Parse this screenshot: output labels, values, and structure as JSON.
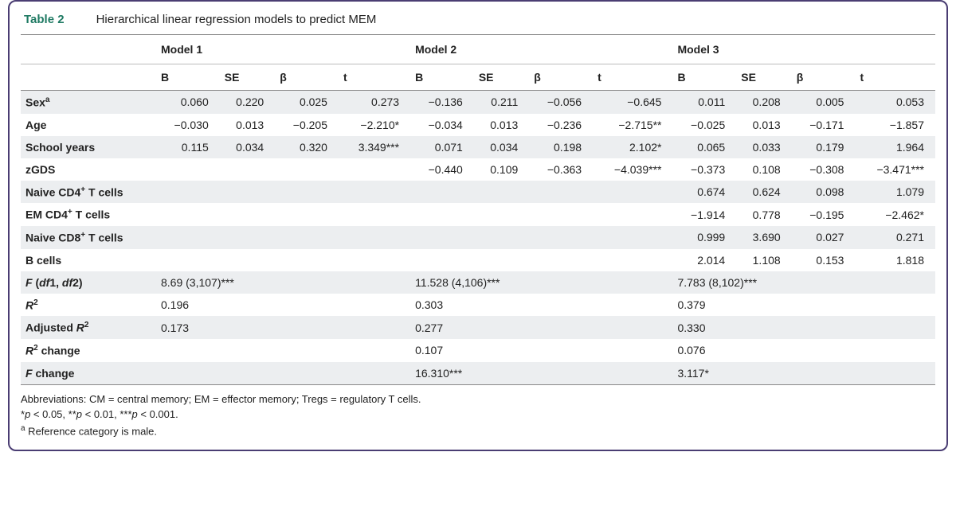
{
  "header": {
    "label": "Table 2",
    "caption": "Hierarchical linear regression models to predict MEM"
  },
  "models": [
    "Model 1",
    "Model 2",
    "Model 3"
  ],
  "subcols": [
    "B",
    "SE",
    "β",
    "t"
  ],
  "rows": [
    {
      "label_html": "Sex<sup>a</sup>",
      "m1": [
        "0.060",
        "0.220",
        "0.025",
        "0.273"
      ],
      "m2": [
        "−0.136",
        "0.211",
        "−0.056",
        "−0.645"
      ],
      "m3": [
        "0.011",
        "0.208",
        "0.005",
        "0.053"
      ]
    },
    {
      "label_html": "Age",
      "m1": [
        "−0.030",
        "0.013",
        "−0.205",
        "−2.210*"
      ],
      "m2": [
        "−0.034",
        "0.013",
        "−0.236",
        "−2.715**"
      ],
      "m3": [
        "−0.025",
        "0.013",
        "−0.171",
        "−1.857"
      ]
    },
    {
      "label_html": "School years",
      "m1": [
        "0.115",
        "0.034",
        "0.320",
        "3.349***"
      ],
      "m2": [
        "0.071",
        "0.034",
        "0.198",
        "2.102*"
      ],
      "m3": [
        "0.065",
        "0.033",
        "0.179",
        "1.964"
      ]
    },
    {
      "label_html": "zGDS",
      "m1": [
        "",
        "",
        "",
        ""
      ],
      "m2": [
        "−0.440",
        "0.109",
        "−0.363",
        "−4.039***"
      ],
      "m3": [
        "−0.373",
        "0.108",
        "−0.308",
        "−3.471***"
      ]
    },
    {
      "label_html": "Naive CD4<sup>+</sup> T cells",
      "m1": [
        "",
        "",
        "",
        ""
      ],
      "m2": [
        "",
        "",
        "",
        ""
      ],
      "m3": [
        "0.674",
        "0.624",
        "0.098",
        "1.079"
      ]
    },
    {
      "label_html": "EM CD4<sup>+</sup> T cells",
      "m1": [
        "",
        "",
        "",
        ""
      ],
      "m2": [
        "",
        "",
        "",
        ""
      ],
      "m3": [
        "−1.914",
        "0.778",
        "−0.195",
        "−2.462*"
      ]
    },
    {
      "label_html": "Naive CD8<sup>+</sup> T cells",
      "m1": [
        "",
        "",
        "",
        ""
      ],
      "m2": [
        "",
        "",
        "",
        ""
      ],
      "m3": [
        "0.999",
        "3.690",
        "0.027",
        "0.271"
      ]
    },
    {
      "label_html": "B cells",
      "m1": [
        "",
        "",
        "",
        ""
      ],
      "m2": [
        "",
        "",
        "",
        ""
      ],
      "m3": [
        "2.014",
        "1.108",
        "0.153",
        "1.818"
      ]
    },
    {
      "label_html": "<span class='italic'>F</span> (<span class='italic'>df</span>1, <span class='italic'>df</span>2)",
      "span4": true,
      "m1s": "8.69 (3,107)***",
      "m2s": "11.528 (4,106)***",
      "m3s": "7.783 (8,102)***"
    },
    {
      "label_html": "<span class='italic'>R</span><sup>2</sup>",
      "span4": true,
      "m1s": "0.196",
      "m2s": "0.303",
      "m3s": "0.379"
    },
    {
      "label_html": "Adjusted <span class='italic'>R</span><sup>2</sup>",
      "span4": true,
      "m1s": "0.173",
      "m2s": "0.277",
      "m3s": "0.330"
    },
    {
      "label_html": "<span class='italic'>R</span><sup>2</sup> change",
      "span4": true,
      "m1s": "",
      "m2s": "0.107",
      "m3s": "0.076"
    },
    {
      "label_html": "<span class='italic'>F</span> change",
      "span4": true,
      "m1s": "",
      "m2s": "16.310***",
      "m3s": "3.117*"
    }
  ],
  "footnotes": [
    "Abbreviations: CM = central memory; EM = effector memory; Tregs = regulatory T cells.",
    "*<span class='italic'>p</span> &lt; 0.05, **<span class='italic'>p</span> &lt; 0.01, ***<span class='italic'>p</span> &lt; 0.001.",
    "<sup>a</sup> Reference category is male."
  ],
  "colors": {
    "border": "#4a3d73",
    "accent": "#1f7a63",
    "row_shade": "#eceef0"
  }
}
